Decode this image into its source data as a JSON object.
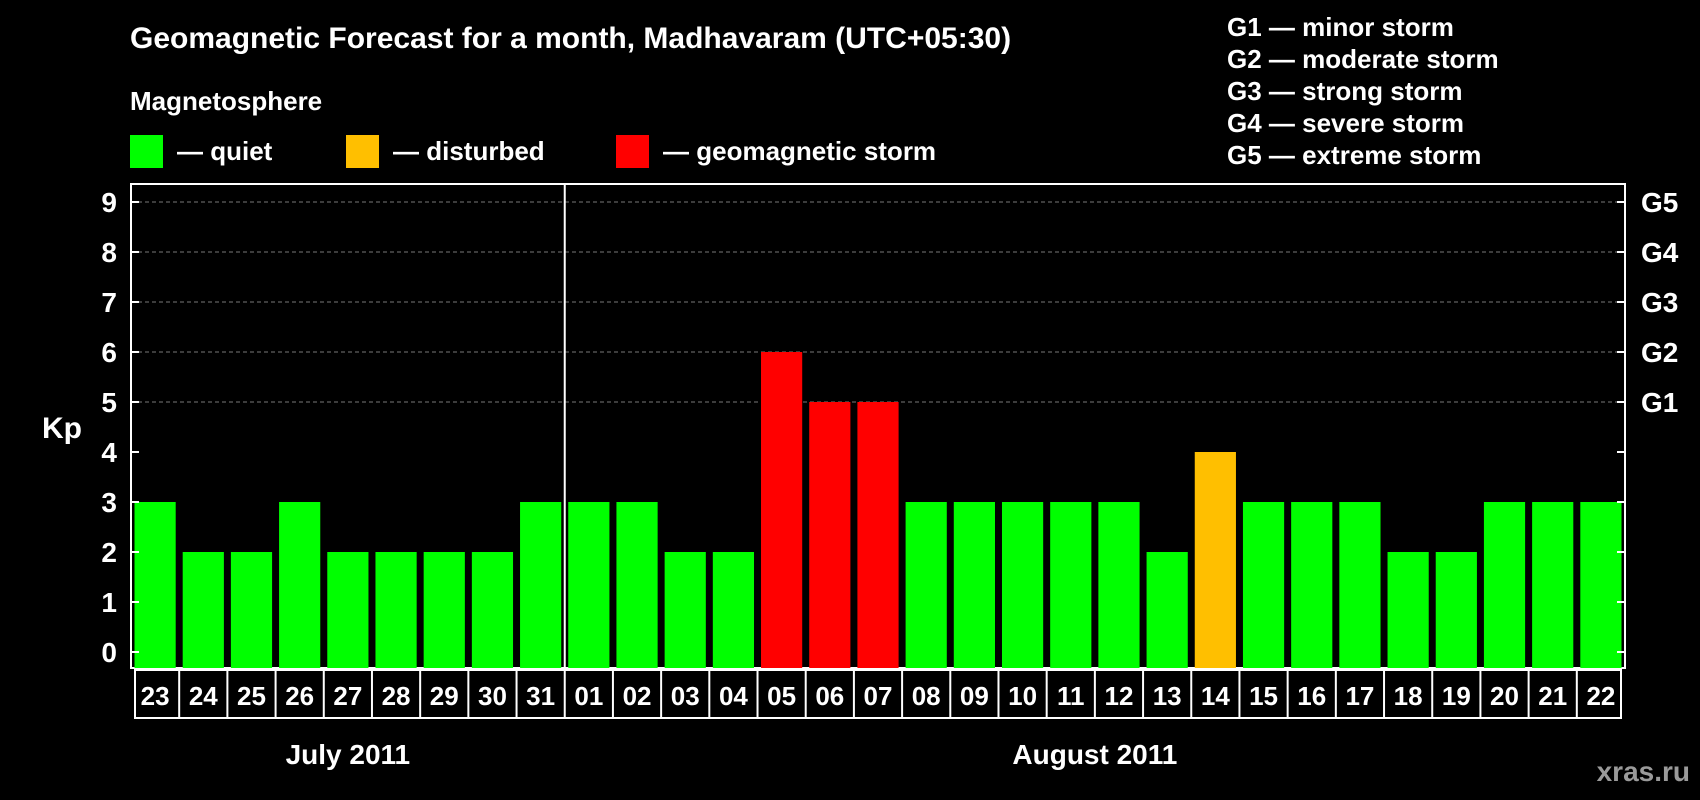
{
  "title": "Geomagnetic Forecast for a month, Madhavaram (UTC+05:30)",
  "legend": {
    "heading": "Magnetosphere",
    "items": [
      {
        "key": "quiet",
        "label": "— quiet",
        "color": "#00ff00"
      },
      {
        "key": "disturbed",
        "label": "— disturbed",
        "color": "#ffbf00"
      },
      {
        "key": "storm",
        "label": "— geomagnetic storm",
        "color": "#ff0000"
      }
    ]
  },
  "g_legend": [
    "G1 — minor storm",
    "G2 — moderate storm",
    "G3 — strong storm",
    "G4 — severe storm",
    "G5 — extreme storm"
  ],
  "watermark": "xras.ru",
  "chart_data": {
    "type": "bar",
    "ylabel": "Kp",
    "ylim": [
      0,
      9
    ],
    "yticks": [
      "0",
      "1",
      "2",
      "3",
      "4",
      "5",
      "6",
      "7",
      "8",
      "9"
    ],
    "g_levels": [
      {
        "label": "G1",
        "kp": 5
      },
      {
        "label": "G2",
        "kp": 6
      },
      {
        "label": "G3",
        "kp": 7
      },
      {
        "label": "G4",
        "kp": 8
      },
      {
        "label": "G5",
        "kp": 9
      }
    ],
    "categories": [
      "23",
      "24",
      "25",
      "26",
      "27",
      "28",
      "29",
      "30",
      "31",
      "01",
      "02",
      "03",
      "04",
      "05",
      "06",
      "07",
      "08",
      "09",
      "10",
      "11",
      "12",
      "13",
      "14",
      "15",
      "16",
      "17",
      "18",
      "19",
      "20",
      "21",
      "22"
    ],
    "values": [
      3,
      2,
      2,
      3,
      2,
      2,
      2,
      2,
      3,
      3,
      3,
      2,
      2,
      6,
      5,
      5,
      3,
      3,
      3,
      3,
      3,
      2,
      4,
      3,
      3,
      3,
      2,
      2,
      3,
      3,
      3
    ],
    "status": [
      "quiet",
      "quiet",
      "quiet",
      "quiet",
      "quiet",
      "quiet",
      "quiet",
      "quiet",
      "quiet",
      "quiet",
      "quiet",
      "quiet",
      "quiet",
      "storm",
      "storm",
      "storm",
      "quiet",
      "quiet",
      "quiet",
      "quiet",
      "quiet",
      "quiet",
      "disturbed",
      "quiet",
      "quiet",
      "quiet",
      "quiet",
      "quiet",
      "quiet",
      "quiet",
      "quiet"
    ],
    "months": [
      {
        "label": "July 2011",
        "start": 0,
        "count": 9
      },
      {
        "label": "August 2011",
        "start": 9,
        "count": 22
      }
    ]
  }
}
